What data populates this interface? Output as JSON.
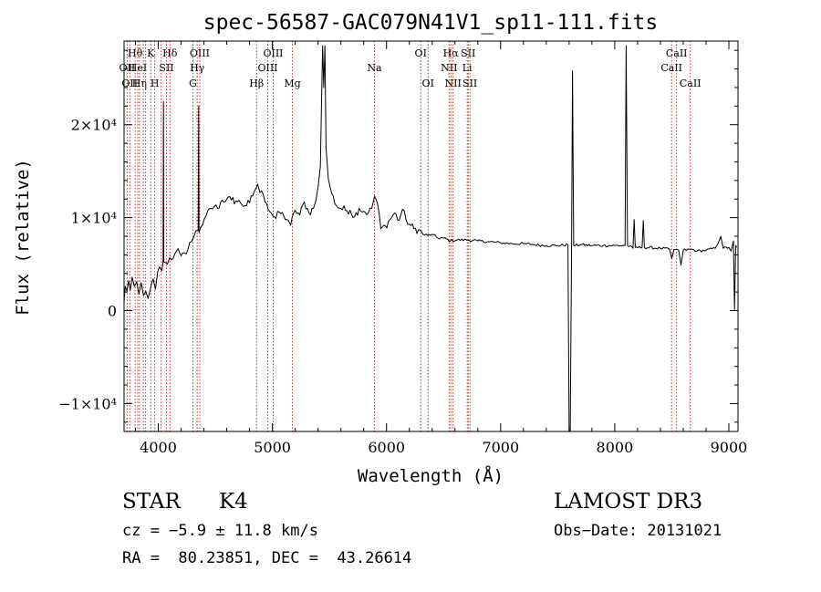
{
  "chart_data": {
    "type": "line",
    "title": "spec-56587-GAC079N41V1_sp11-111.fits",
    "xlabel": "Wavelength (Å)",
    "ylabel": "Flux (relative)",
    "xlim": [
      3700,
      9080
    ],
    "ylim": [
      -13000,
      29000
    ],
    "x_ticks": [
      {
        "value": 4000,
        "label": "4000"
      },
      {
        "value": 5000,
        "label": "5000"
      },
      {
        "value": 6000,
        "label": "6000"
      },
      {
        "value": 7000,
        "label": "7000"
      },
      {
        "value": 8000,
        "label": "8000"
      },
      {
        "value": 9000,
        "label": "9000"
      }
    ],
    "y_ticks": [
      {
        "value": -10000,
        "label": "−1×10⁴"
      },
      {
        "value": 0,
        "label": "0"
      },
      {
        "value": 10000,
        "label": "1×10⁴"
      },
      {
        "value": 20000,
        "label": "2×10⁴"
      }
    ],
    "line_markers": [
      {
        "wavelength": 3727,
        "label": "OII",
        "row": 2
      },
      {
        "wavelength": 3750,
        "label": "OII",
        "row": 3
      },
      {
        "wavelength": 3797,
        "label": "Hθ",
        "row": 1
      },
      {
        "wavelength": 3820,
        "label": "HeI",
        "row": 2
      },
      {
        "wavelength": 3835,
        "label": "Hη",
        "row": 3
      },
      {
        "wavelength": 3869,
        "label": "",
        "row": 0
      },
      {
        "wavelength": 3889,
        "label": "",
        "row": 0
      },
      {
        "wavelength": 3934,
        "label": "K",
        "row": 1
      },
      {
        "wavelength": 3969,
        "label": "H",
        "row": 3
      },
      {
        "wavelength": 4026,
        "label": "",
        "row": 0
      },
      {
        "wavelength": 4072,
        "label": "SII",
        "row": 2
      },
      {
        "wavelength": 4102,
        "label": "Hδ",
        "row": 1
      },
      {
        "wavelength": 4304,
        "label": "G",
        "row": 3
      },
      {
        "wavelength": 4341,
        "label": "Hγ",
        "row": 2
      },
      {
        "wavelength": 4363,
        "label": "OIII",
        "row": 1
      },
      {
        "wavelength": 4861,
        "label": "Hβ",
        "row": 3
      },
      {
        "wavelength": 4959,
        "label": "OIII",
        "row": 2
      },
      {
        "wavelength": 5007,
        "label": "OIII",
        "row": 1
      },
      {
        "wavelength": 5175,
        "label": "Mg",
        "row": 3
      },
      {
        "wavelength": 5894,
        "label": "Na",
        "row": 2
      },
      {
        "wavelength": 6300,
        "label": "OI",
        "row": 1
      },
      {
        "wavelength": 6364,
        "label": "OI",
        "row": 3
      },
      {
        "wavelength": 6548,
        "label": "NII",
        "row": 2
      },
      {
        "wavelength": 6563,
        "label": "Hα",
        "row": 1
      },
      {
        "wavelength": 6583,
        "label": "NII",
        "row": 3
      },
      {
        "wavelength": 6707,
        "label": "Li",
        "row": 2
      },
      {
        "wavelength": 6716,
        "label": "SII",
        "row": 1
      },
      {
        "wavelength": 6731,
        "label": "SII",
        "row": 3
      },
      {
        "wavelength": 8498,
        "label": "CaII",
        "row": 2
      },
      {
        "wavelength": 8542,
        "label": "CaII",
        "row": 1
      },
      {
        "wavelength": 8662,
        "label": "CaII",
        "row": 3
      }
    ],
    "series": [
      {
        "points": [
          [
            3700,
            900
          ],
          [
            3710,
            2600
          ],
          [
            3725,
            2100
          ],
          [
            3740,
            3200
          ],
          [
            3755,
            2200
          ],
          [
            3770,
            3600
          ],
          [
            3790,
            2600
          ],
          [
            3810,
            3100
          ],
          [
            3830,
            1800
          ],
          [
            3850,
            3000
          ],
          [
            3870,
            1600
          ],
          [
            3890,
            2100
          ],
          [
            3910,
            1300
          ],
          [
            3930,
            2300
          ],
          [
            3955,
            3400
          ],
          [
            3975,
            2300
          ],
          [
            3995,
            4200
          ],
          [
            4010,
            4700
          ],
          [
            4030,
            4300
          ],
          [
            4042,
            5200
          ],
          [
            4045,
            22500
          ],
          [
            4048,
            5200
          ],
          [
            4060,
            5200
          ],
          [
            4080,
            5000
          ],
          [
            4100,
            5700
          ],
          [
            4130,
            5600
          ],
          [
            4160,
            6400
          ],
          [
            4200,
            5900
          ],
          [
            4230,
            6200
          ],
          [
            4260,
            6600
          ],
          [
            4290,
            7400
          ],
          [
            4310,
            7900
          ],
          [
            4330,
            8600
          ],
          [
            4350,
            8600
          ],
          [
            4354,
            22000
          ],
          [
            4356,
            8400
          ],
          [
            4370,
            8900
          ],
          [
            4390,
            9300
          ],
          [
            4420,
            10200
          ],
          [
            4460,
            11000
          ],
          [
            4490,
            11200
          ],
          [
            4520,
            11000
          ],
          [
            4560,
            11900
          ],
          [
            4600,
            12000
          ],
          [
            4640,
            11900
          ],
          [
            4680,
            11800
          ],
          [
            4720,
            11600
          ],
          [
            4760,
            11300
          ],
          [
            4800,
            11600
          ],
          [
            4840,
            12800
          ],
          [
            4870,
            13600
          ],
          [
            4890,
            12700
          ],
          [
            4920,
            12500
          ],
          [
            4950,
            11500
          ],
          [
            4990,
            10500
          ],
          [
            5030,
            9900
          ],
          [
            5060,
            10600
          ],
          [
            5100,
            10200
          ],
          [
            5140,
            9700
          ],
          [
            5160,
            9200
          ],
          [
            5200,
            10800
          ],
          [
            5240,
            10300
          ],
          [
            5280,
            11700
          ],
          [
            5320,
            10500
          ],
          [
            5360,
            11000
          ],
          [
            5380,
            11800
          ],
          [
            5400,
            13300
          ],
          [
            5420,
            15500
          ],
          [
            5430,
            22000
          ],
          [
            5440,
            28500
          ],
          [
            5450,
            24000
          ],
          [
            5460,
            28500
          ],
          [
            5470,
            17500
          ],
          [
            5490,
            14200
          ],
          [
            5520,
            12600
          ],
          [
            5560,
            11300
          ],
          [
            5600,
            11000
          ],
          [
            5640,
            10800
          ],
          [
            5680,
            10800
          ],
          [
            5720,
            10100
          ],
          [
            5760,
            11000
          ],
          [
            5800,
            10700
          ],
          [
            5840,
            10500
          ],
          [
            5870,
            11000
          ],
          [
            5895,
            12300
          ],
          [
            5920,
            11600
          ],
          [
            5950,
            8800
          ],
          [
            5990,
            9100
          ],
          [
            6030,
            9800
          ],
          [
            6070,
            10500
          ],
          [
            6110,
            9700
          ],
          [
            6140,
            10900
          ],
          [
            6170,
            9800
          ],
          [
            6200,
            9300
          ],
          [
            6240,
            8800
          ],
          [
            6280,
            8700
          ],
          [
            6320,
            8200
          ],
          [
            6360,
            8100
          ],
          [
            6400,
            8200
          ],
          [
            6450,
            7800
          ],
          [
            6500,
            7800
          ],
          [
            6560,
            7500
          ],
          [
            6620,
            7600
          ],
          [
            6700,
            7600
          ],
          [
            6800,
            7500
          ],
          [
            6900,
            7400
          ],
          [
            7000,
            7300
          ],
          [
            7100,
            7200
          ],
          [
            7200,
            7200
          ],
          [
            7300,
            7100
          ],
          [
            7400,
            7000
          ],
          [
            7500,
            7000
          ],
          [
            7590,
            7100
          ],
          [
            7600,
            -13000
          ],
          [
            7610,
            -13000
          ],
          [
            7622,
            7000
          ],
          [
            7630,
            25800
          ],
          [
            7640,
            7000
          ],
          [
            7700,
            7100
          ],
          [
            7800,
            7000
          ],
          [
            7900,
            7000
          ],
          [
            8000,
            7000
          ],
          [
            8090,
            7000
          ],
          [
            8100,
            28500
          ],
          [
            8112,
            7000
          ],
          [
            8160,
            6700
          ],
          [
            8170,
            9800
          ],
          [
            8180,
            6800
          ],
          [
            8240,
            6800
          ],
          [
            8250,
            9700
          ],
          [
            8260,
            6800
          ],
          [
            8400,
            6700
          ],
          [
            8480,
            6600
          ],
          [
            8500,
            5600
          ],
          [
            8520,
            6600
          ],
          [
            8560,
            6500
          ],
          [
            8580,
            4900
          ],
          [
            8600,
            6500
          ],
          [
            8680,
            6600
          ],
          [
            8720,
            6400
          ],
          [
            8800,
            6500
          ],
          [
            8880,
            6700
          ],
          [
            8930,
            8000
          ],
          [
            8950,
            6700
          ],
          [
            9000,
            6800
          ],
          [
            9020,
            6400
          ],
          [
            9040,
            7500
          ],
          [
            9050,
            100
          ],
          [
            9060,
            7000
          ],
          [
            9070,
            6800
          ]
        ]
      }
    ]
  },
  "info": {
    "obj_class": "STAR",
    "subclass": "K4",
    "survey": "LAMOST DR3",
    "cz": "cz = −5.9 ± 11.8 km/s",
    "obs_date": "Obs−Date: 20131021",
    "radec": "RA =  80.23851, DEC =  43.26614"
  }
}
